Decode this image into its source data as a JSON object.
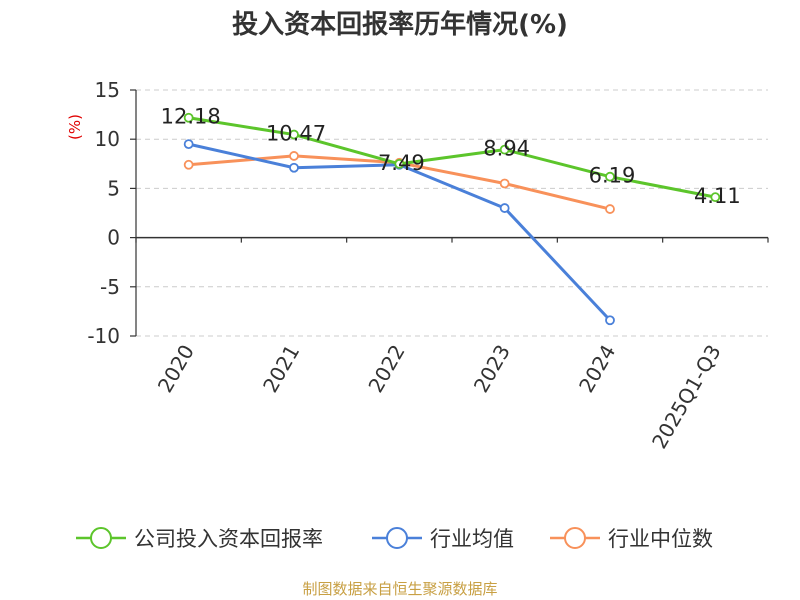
{
  "chart_data": {
    "type": "line",
    "title": "投入资本回报率历年情况(%)",
    "ylabel": "(%)",
    "xlabel": "",
    "categories": [
      "2020",
      "2021",
      "2022",
      "2023",
      "2024",
      "2025Q1-Q3"
    ],
    "ylim": [
      -10,
      15
    ],
    "yticks": [
      15,
      10,
      5,
      0,
      -5,
      -10
    ],
    "ytick_labels": [
      "15",
      "10",
      "5",
      "0",
      "-5",
      "-10"
    ],
    "grid": true,
    "legend_position": "bottom",
    "series": [
      {
        "name": "公司投入资本回报率",
        "color": "#5cc52b",
        "values": [
          12.18,
          10.47,
          7.49,
          8.94,
          6.19,
          4.11
        ],
        "labels": [
          "12.18",
          "10.47",
          "7.49",
          "8.94",
          "6.19",
          "4.11"
        ]
      },
      {
        "name": "行业均值",
        "color": "#4a80d9",
        "values": [
          9.5,
          7.1,
          7.4,
          3.0,
          -8.4,
          null
        ]
      },
      {
        "name": "行业中位数",
        "color": "#f8915a",
        "values": [
          7.4,
          8.3,
          7.6,
          5.5,
          2.9,
          null
        ]
      }
    ]
  },
  "source_text": "制图数据来自恒生聚源数据库"
}
